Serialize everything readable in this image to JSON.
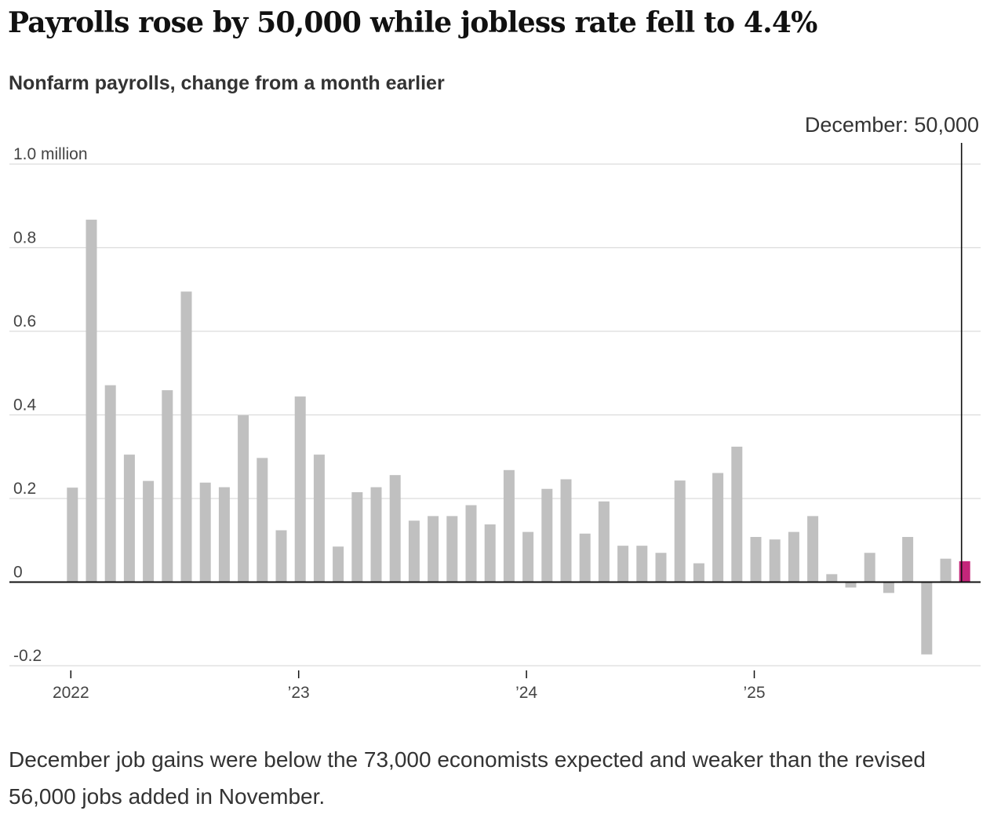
{
  "header": {
    "title": "Payrolls rose by 50,000 while jobless rate fell to 4.4%",
    "subtitle": "Nonfarm payrolls, change from a month earlier"
  },
  "note": "December job gains were below the 73,000 economists expected and weaker than the revised 56,000 jobs added in November.",
  "colors": {
    "bar": "#c0c0c0",
    "highlight": "#c4267a",
    "axis": "#111111",
    "grid": "#dcdcdc"
  },
  "chart_data": {
    "type": "bar",
    "title": "Payrolls rose by 50,000 while jobless rate fell to 4.4%",
    "subtitle": "Nonfarm payrolls, change from a month earlier",
    "units": "million",
    "ylim": [
      -0.2,
      1.0
    ],
    "yticks": [
      {
        "value": 1.0,
        "label": "1.0 million"
      },
      {
        "value": 0.8,
        "label": "0.8"
      },
      {
        "value": 0.6,
        "label": "0.6"
      },
      {
        "value": 0.4,
        "label": "0.4"
      },
      {
        "value": 0.2,
        "label": "0.2"
      },
      {
        "value": 0,
        "label": "0"
      },
      {
        "value": -0.2,
        "label": "-0.2"
      }
    ],
    "xticks": [
      {
        "index": 0,
        "label": "2022"
      },
      {
        "index": 12,
        "label": "’23"
      },
      {
        "index": 24,
        "label": "’24"
      },
      {
        "index": 36,
        "label": "’25"
      }
    ],
    "grid": true,
    "categories": [
      "Jan 2022",
      "Feb 2022",
      "Mar 2022",
      "Apr 2022",
      "May 2022",
      "Jun 2022",
      "Jul 2022",
      "Aug 2022",
      "Sep 2022",
      "Oct 2022",
      "Nov 2022",
      "Dec 2022",
      "Jan 2023",
      "Feb 2023",
      "Mar 2023",
      "Apr 2023",
      "May 2023",
      "Jun 2023",
      "Jul 2023",
      "Aug 2023",
      "Sep 2023",
      "Oct 2023",
      "Nov 2023",
      "Dec 2023",
      "Jan 2024",
      "Feb 2024",
      "Mar 2024",
      "Apr 2024",
      "May 2024",
      "Jun 2024",
      "Jul 2024",
      "Aug 2024",
      "Sep 2024",
      "Oct 2024",
      "Nov 2024",
      "Dec 2024",
      "Jan 2025",
      "Feb 2025",
      "Mar 2025",
      "Apr 2025",
      "May 2025",
      "Jun 2025",
      "Jul 2025",
      "Aug 2025",
      "Sep 2025",
      "Oct 2025",
      "Nov 2025",
      "Dec 2025"
    ],
    "values": [
      0.226,
      0.867,
      0.471,
      0.305,
      0.242,
      0.459,
      0.695,
      0.238,
      0.227,
      0.399,
      0.297,
      0.124,
      0.444,
      0.305,
      0.085,
      0.215,
      0.227,
      0.256,
      0.147,
      0.158,
      0.158,
      0.184,
      0.138,
      0.268,
      0.12,
      0.223,
      0.246,
      0.116,
      0.193,
      0.087,
      0.087,
      0.07,
      0.243,
      0.045,
      0.261,
      0.324,
      0.108,
      0.102,
      0.12,
      0.158,
      0.019,
      -0.013,
      0.07,
      -0.026,
      0.108,
      -0.173,
      0.056,
      0.05
    ],
    "highlight_index": 47,
    "annotation": {
      "label": "December: 50,000",
      "index": 47
    }
  }
}
